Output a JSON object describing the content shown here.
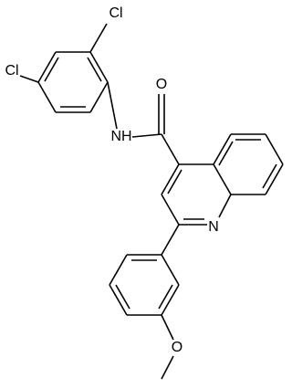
{
  "atoms": [
    {
      "label": "Cl"
    },
    {
      "label": "Cl"
    },
    {
      "label": "NH"
    },
    {
      "label": "O"
    },
    {
      "label": "N"
    },
    {
      "label": "O"
    }
  ]
}
